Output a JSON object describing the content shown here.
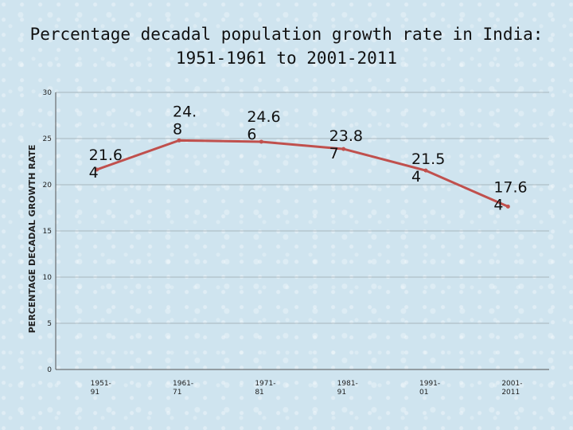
{
  "title_line1": "Percentage decadal population growth rate in India:",
  "title_line2": "1951-1961 to 2001-2011",
  "chart_data": {
    "type": "line",
    "title": "Percentage decadal population growth rate in India: 1951-1961 to 2001-2011",
    "ylabel": "PERCENTAGE DECADAL GROWTH RATE",
    "xlabel": "",
    "ylim": [
      0,
      30
    ],
    "yticks": [
      0,
      5,
      10,
      15,
      20,
      25,
      30
    ],
    "categories": [
      "1951-91",
      "1961-71",
      "1971-81",
      "1981-91",
      "1991-01",
      "2001-2011"
    ],
    "category_lines": [
      [
        "1951-",
        "91"
      ],
      [
        "1961-",
        "71"
      ],
      [
        "1971-",
        "81"
      ],
      [
        "1981-",
        "91"
      ],
      [
        "1991-",
        "01"
      ],
      [
        "2001-",
        "2011"
      ]
    ],
    "values": [
      21.64,
      24.8,
      24.66,
      23.87,
      21.54,
      17.64
    ],
    "data_labels": [
      [
        "21.6",
        "4"
      ],
      [
        "24.",
        "8"
      ],
      [
        "24.6",
        "6"
      ],
      [
        "23.8",
        "7"
      ],
      [
        "21.5",
        "4"
      ],
      [
        "17.6",
        "4"
      ]
    ],
    "line_color": "#c0504d",
    "grid": true
  }
}
